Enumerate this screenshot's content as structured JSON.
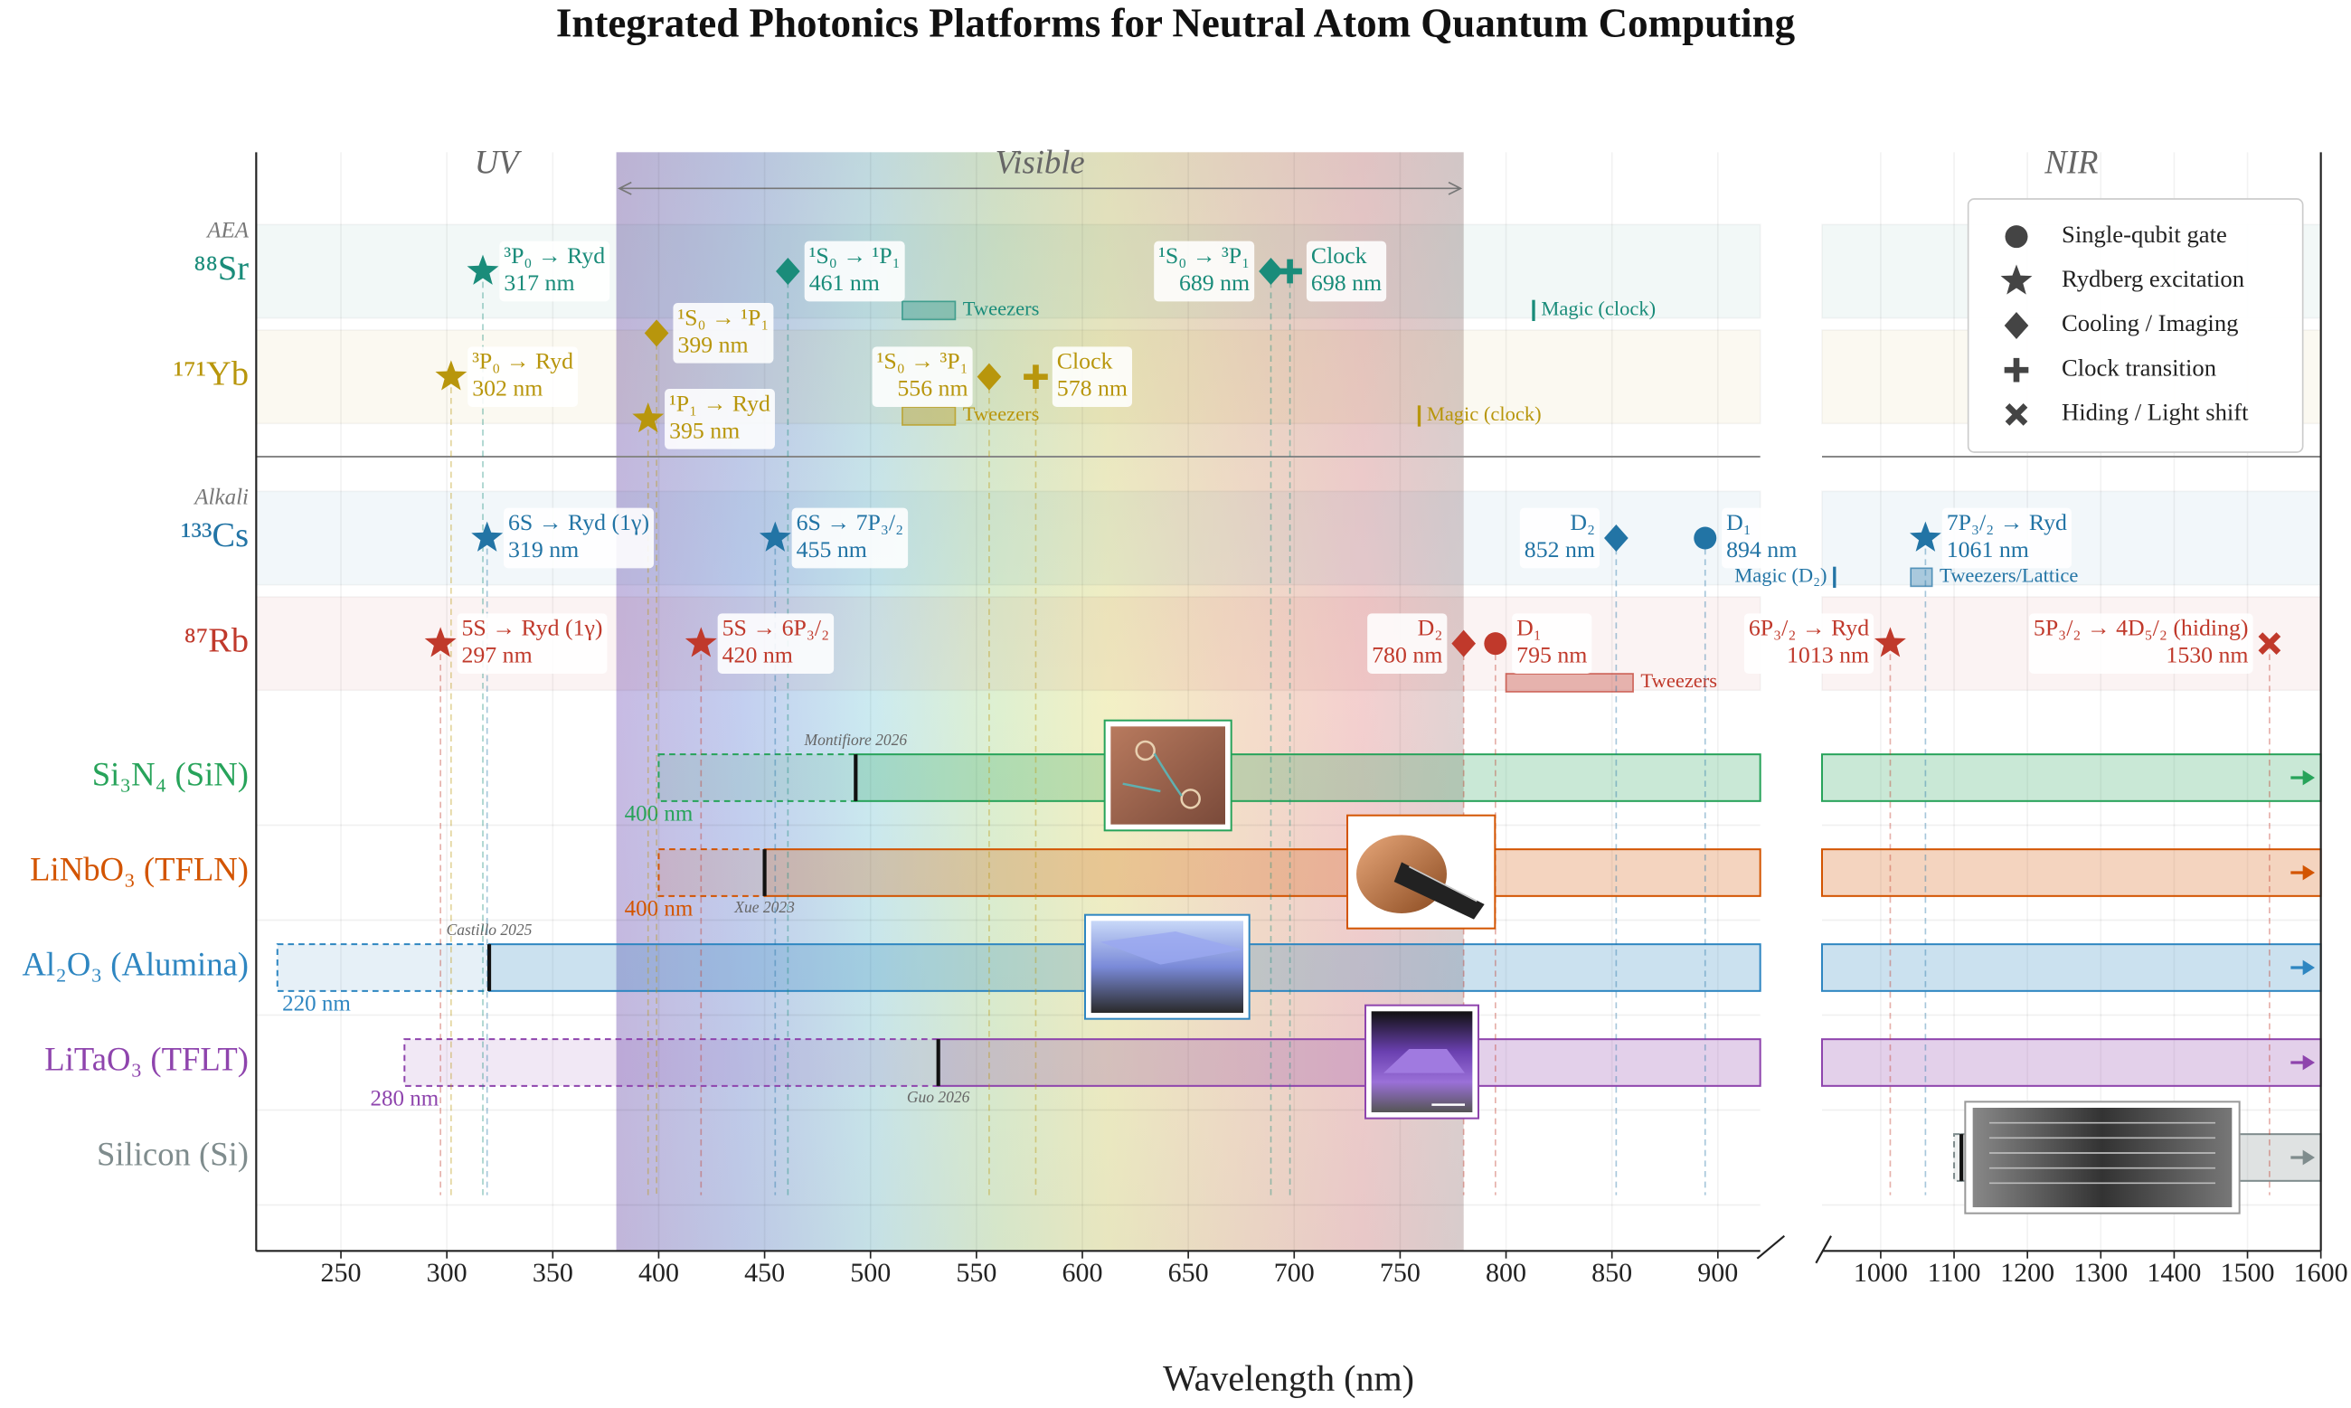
{
  "chart_data": {
    "type": "spectrum",
    "title": "Integrated Photonics Platforms for Neutral Atom Quantum Computing",
    "x_label": "Wavelength (nm)",
    "panels": [
      {
        "xlim": [
          210,
          920
        ],
        "xticks": [
          250,
          300,
          350,
          400,
          450,
          500,
          550,
          600,
          650,
          700,
          750,
          800,
          850,
          900
        ]
      },
      {
        "xlim": [
          920,
          1600
        ],
        "xticks": [
          1000,
          1100,
          1200,
          1300,
          1400,
          1500,
          1600
        ]
      }
    ],
    "regions": [
      {
        "label": "UV"
      },
      {
        "label": "Visible",
        "range": [
          380,
          780
        ]
      },
      {
        "label": "NIR"
      }
    ],
    "groups": [
      {
        "label": "AEA",
        "species": [
          {
            "name": "⁸⁸Sr",
            "color": "#1a8c7a",
            "transitions": [
              {
                "marker": "star",
                "wavelength": 317,
                "label": "³P₀ → Ryd",
                "wavelength_label": "317 nm"
              },
              {
                "marker": "diamond",
                "wavelength": 461,
                "label": "¹S₀ → ¹P₁",
                "wavelength_label": "461 nm"
              },
              {
                "marker": "diamond",
                "wavelength": 689,
                "label": "¹S₀ → ³P₁",
                "wavelength_label": "689 nm"
              },
              {
                "marker": "plus",
                "wavelength": 698,
                "label": "Clock",
                "wavelength_label": "698 nm"
              }
            ],
            "features": [
              {
                "kind": "band",
                "range": [
                  515,
                  540
                ],
                "label": "Tweezers"
              },
              {
                "kind": "line",
                "wavelength": 813,
                "label": "Magic (clock)"
              }
            ]
          },
          {
            "name": "¹⁷¹Yb",
            "color": "#b8960c",
            "transitions": [
              {
                "marker": "star",
                "wavelength": 302,
                "label": "³P₀ → Ryd",
                "wavelength_label": "302 nm"
              },
              {
                "marker": "star",
                "wavelength": 395,
                "label": "¹P₁ → Ryd",
                "wavelength_label": "395 nm"
              },
              {
                "marker": "diamond",
                "wavelength": 399,
                "label": "¹S₀ → ¹P₁",
                "wavelength_label": "399 nm"
              },
              {
                "marker": "diamond",
                "wavelength": 556,
                "label": "¹S₀ → ³P₁",
                "wavelength_label": "556 nm"
              },
              {
                "marker": "plus",
                "wavelength": 578,
                "label": "Clock",
                "wavelength_label": "578 nm"
              }
            ],
            "features": [
              {
                "kind": "band",
                "range": [
                  515,
                  540
                ],
                "label": "Tweezers"
              },
              {
                "kind": "line",
                "wavelength": 759,
                "label": "Magic (clock)"
              }
            ]
          }
        ]
      },
      {
        "label": "Alkali",
        "species": [
          {
            "name": "¹³³Cs",
            "color": "#2274a5",
            "transitions": [
              {
                "marker": "star",
                "wavelength": 319,
                "label": "6S → Ryd (1γ)",
                "wavelength_label": "319 nm"
              },
              {
                "marker": "star",
                "wavelength": 455,
                "label": "6S → 7P₃/₂",
                "wavelength_label": "455 nm"
              },
              {
                "marker": "diamond",
                "wavelength": 852,
                "label": "D₂",
                "wavelength_label": "852 nm"
              },
              {
                "marker": "circle",
                "wavelength": 894,
                "label": "D₁",
                "wavelength_label": "894 nm"
              },
              {
                "marker": "star",
                "wavelength": 1061,
                "label": "7P₃/₂ → Ryd",
                "wavelength_label": "1061 nm"
              }
            ],
            "features": [
              {
                "kind": "line",
                "wavelength": 937,
                "label": "Magic (D₂)"
              },
              {
                "kind": "band",
                "range": [
                  1041,
                  1070
                ],
                "label": "Tweezers/Lattice"
              }
            ]
          },
          {
            "name": "⁸⁷Rb",
            "color": "#c0392b",
            "transitions": [
              {
                "marker": "star",
                "wavelength": 297,
                "label": "5S → Ryd (1γ)",
                "wavelength_label": "297 nm"
              },
              {
                "marker": "star",
                "wavelength": 420,
                "label": "5S → 6P₃/₂",
                "wavelength_label": "420 nm"
              },
              {
                "marker": "diamond",
                "wavelength": 780,
                "label": "D₂",
                "wavelength_label": "780 nm"
              },
              {
                "marker": "circle",
                "wavelength": 795,
                "label": "D₁",
                "wavelength_label": "795 nm"
              },
              {
                "marker": "star",
                "wavelength": 1013,
                "label": "6P₃/₂ → Ryd",
                "wavelength_label": "1013 nm"
              },
              {
                "marker": "x",
                "wavelength": 1530,
                "label": "5P₃/₂ → 4D₅/₂ (hiding)",
                "wavelength_label": "1530 nm"
              }
            ],
            "features": [
              {
                "kind": "band",
                "range": [
                  800,
                  860
                ],
                "label": "Tweezers"
              }
            ]
          }
        ]
      }
    ],
    "platforms": [
      {
        "name": "Si₃N₄ (SiN)",
        "color": "#27a35a",
        "start": 400,
        "start_label": "400 nm",
        "demo_from": 493,
        "reference": "Montifiore 2026"
      },
      {
        "name": "LiNbO₃ (TFLN)",
        "color": "#d35400",
        "start": 400,
        "start_label": "400 nm",
        "demo_from": 450,
        "reference": "Xue 2023"
      },
      {
        "name": "Al₂O₃ (Alumina)",
        "color": "#2e86c1",
        "start": 220,
        "start_label": "220 nm",
        "demo_from": 320,
        "reference": "Castillo 2025"
      },
      {
        "name": "LiTaO₃ (TFLT)",
        "color": "#8e44ad",
        "start": 280,
        "start_label": "280 nm",
        "demo_from": 532,
        "reference": "Guo 2026"
      },
      {
        "name": "Silicon (Si)",
        "color": "#7f8c8d",
        "start": 1100,
        "demo_from": 1110
      }
    ],
    "legend": [
      {
        "marker": "circle",
        "label": "Single-qubit gate"
      },
      {
        "marker": "star",
        "label": "Rydberg excitation"
      },
      {
        "marker": "diamond",
        "label": "Cooling / Imaging"
      },
      {
        "marker": "plus",
        "label": "Clock transition"
      },
      {
        "marker": "x",
        "label": "Hiding / Light shift"
      }
    ],
    "legend_position": "upper right",
    "grid": true
  }
}
